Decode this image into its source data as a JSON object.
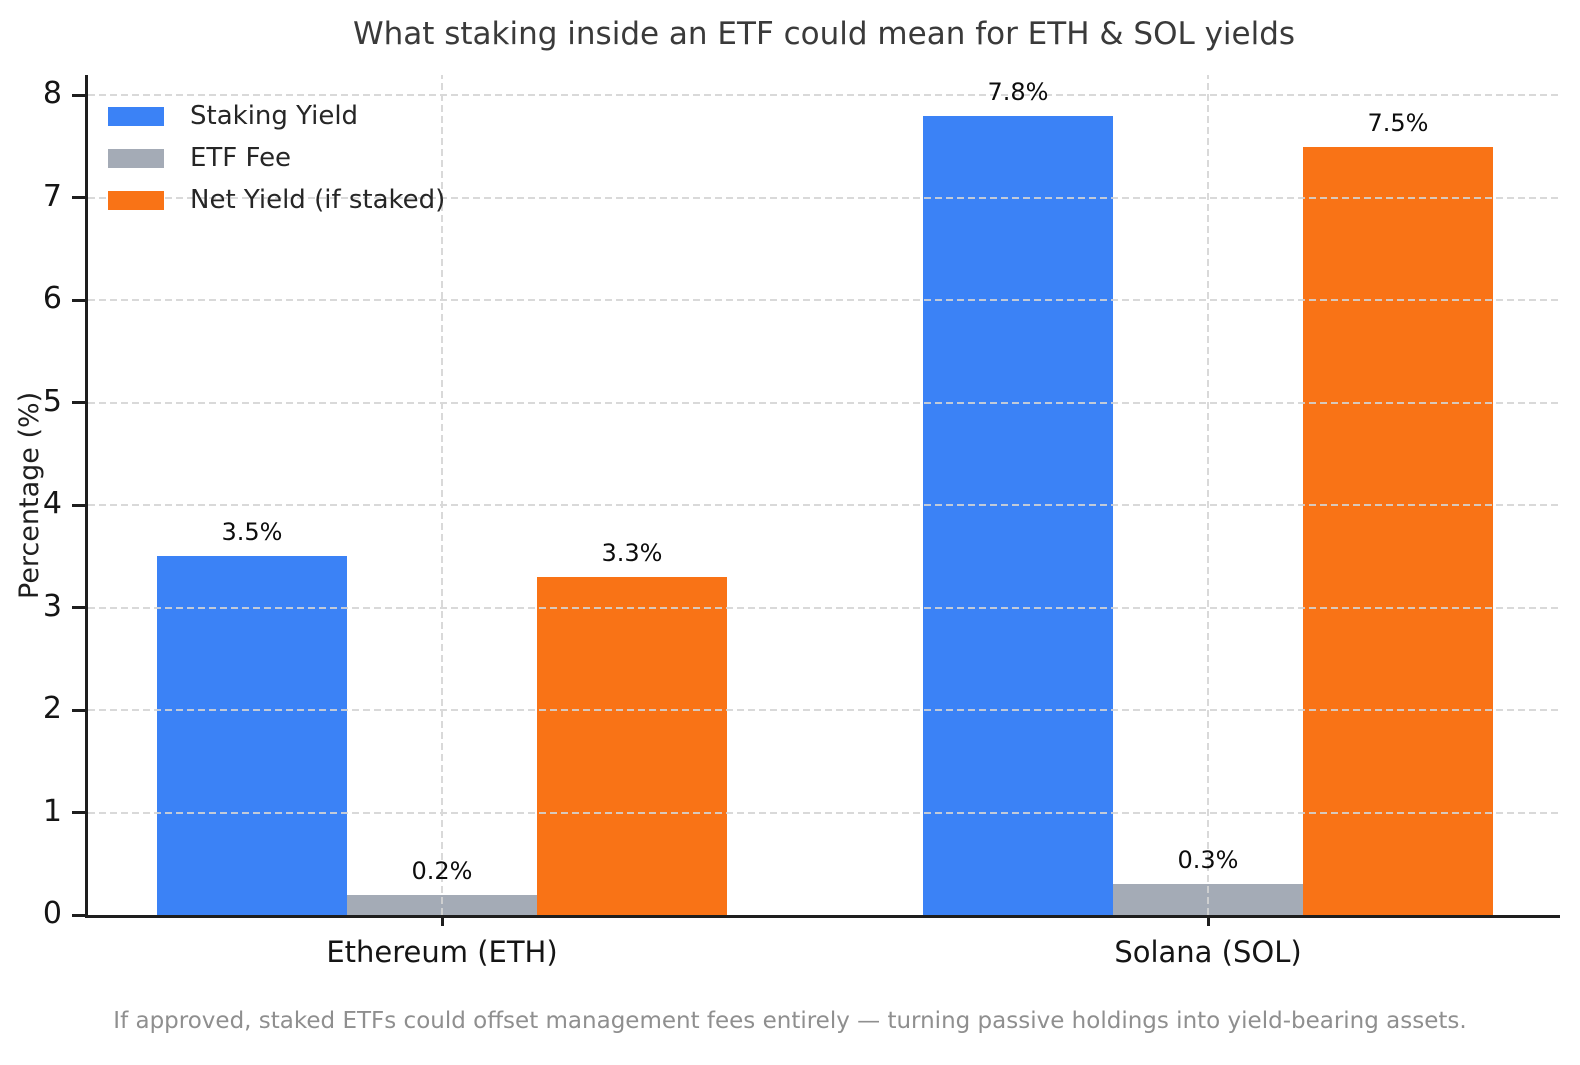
{
  "chart_data": {
    "type": "bar",
    "title": "What staking inside an ETF could mean for ETH & SOL yields",
    "categories": [
      "Ethereum (ETH)",
      "Solana (SOL)"
    ],
    "series": [
      {
        "name": "Staking Yield",
        "color": "#3b82f6",
        "values": [
          3.5,
          7.8
        ],
        "labels": [
          "3.5%",
          "7.8%"
        ]
      },
      {
        "name": "ETF Fee",
        "color": "#a4abb6",
        "values": [
          0.2,
          0.3
        ],
        "labels": [
          "0.2%",
          "0.3%"
        ]
      },
      {
        "name": "Net Yield (if staked)",
        "color": "#f97316",
        "values": [
          3.3,
          7.5
        ],
        "labels": [
          "3.3%",
          "7.5%"
        ]
      }
    ],
    "xlabel": "",
    "ylabel": "Percentage (%)",
    "ylim": [
      0,
      8.2
    ],
    "yticks": [
      "0",
      "1",
      "2",
      "3",
      "4",
      "5",
      "6",
      "7",
      "8"
    ],
    "grid": true,
    "grid_style": "dashed",
    "legend_position": "upper-left",
    "caption": "If approved, staked ETFs could offset management fees entirely — turning passive holdings into yield-bearing assets."
  },
  "colors": {
    "grid": "#d4d4d4",
    "axis": "#1e1e1e",
    "title_text": "#3a3a3a",
    "caption_text": "#8f8f8f",
    "background": "#ffffff"
  }
}
